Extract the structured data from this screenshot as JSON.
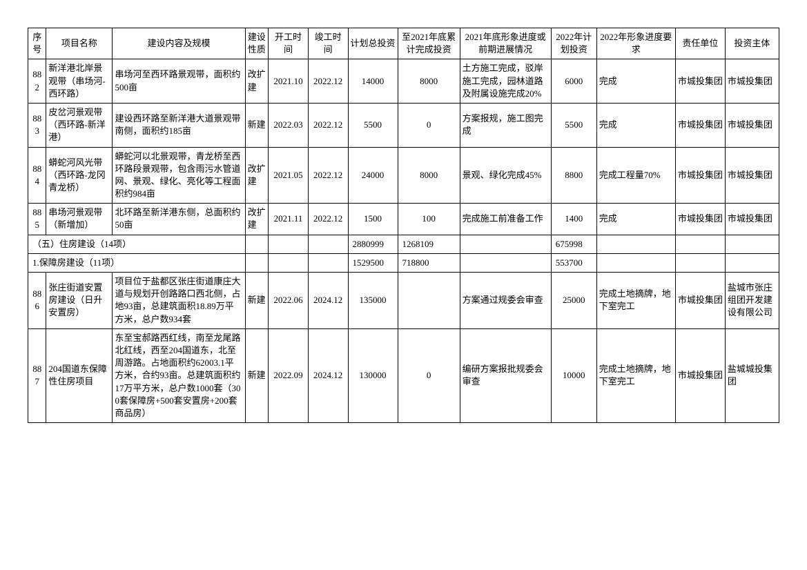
{
  "headers": {
    "seq": "序号",
    "name": "项目名称",
    "content": "建设内容及规模",
    "nature": "建设性质",
    "start": "开工时间",
    "end": "竣工时间",
    "plan_invest": "计划总投资",
    "invest_2021": "至2021年底累计完成投资",
    "status_2021": "2021年底形象进度或前期进展情况",
    "plan_2022": "2022年计划投资",
    "req_2022": "2022年形象进度要求",
    "unit": "责任单位",
    "subject": "投资主体"
  },
  "rows": [
    {
      "seq": "882",
      "name": "新洋港北岸景观带（串场河-西环路）",
      "content": "串场河至西环路景观带，面积约500亩",
      "nature": "改扩建",
      "start": "2021.10",
      "end": "2022.12",
      "plan_invest": "14000",
      "invest_2021": "8000",
      "status_2021": "土方施工完成，驳岸施工完成，园林道路及附属设施完成20%",
      "plan_2022": "6000",
      "req_2022": "完成",
      "unit": "市城投集团",
      "subject": "市城投集团"
    },
    {
      "seq": "883",
      "name": "皮岔河景观带（西环路-新洋港）",
      "content": "建设西环路至新洋港大道景观带南侧，面积约185亩",
      "nature": "新建",
      "start": "2022.03",
      "end": "2022.12",
      "plan_invest": "5500",
      "invest_2021": "0",
      "status_2021": "方案报规，施工图完成",
      "plan_2022": "5500",
      "req_2022": "完成",
      "unit": "市城投集团",
      "subject": "市城投集团"
    },
    {
      "seq": "884",
      "name": "蟒蛇河风光带（西环路-龙冈青龙桥）",
      "content": "蟒蛇河以北景观带，青龙桥至西环路段景观带，包含雨污水管道网、景观、绿化、亮化等工程面积约984亩",
      "nature": "改扩建",
      "start": "2021.05",
      "end": "2022.12",
      "plan_invest": "24000",
      "invest_2021": "8000",
      "status_2021": "景观、绿化完成45%",
      "plan_2022": "8800",
      "req_2022": "完成工程量70%",
      "unit": "市城投集团",
      "subject": "市城投集团"
    },
    {
      "seq": "885",
      "name": "串场河景观带（新增加）",
      "content": "北环路至新洋港东侧，总面积约50亩",
      "nature": "改扩建",
      "start": "2021.11",
      "end": "2022.12",
      "plan_invest": "1500",
      "invest_2021": "100",
      "status_2021": "完成施工前准备工作",
      "plan_2022": "1400",
      "req_2022": "完成",
      "unit": "市城投集团",
      "subject": "市城投集团"
    }
  ],
  "section1": {
    "label": "（五）住房建设（14项）",
    "plan_invest": "2880999",
    "invest_2021": "1268109",
    "plan_2022": "675998"
  },
  "section2": {
    "label": "1.保障房建设（11项）",
    "plan_invest": "1529500",
    "invest_2021": "718800",
    "plan_2022": "553700"
  },
  "rows2": [
    {
      "seq": "886",
      "name": "张庄街道安置房建设（日升安置房）",
      "content": "项目位于盐都区张庄街道康庄大道与规划开创路路口西北侧，占地93亩，总建筑面积18.89万平方米，总户数934套",
      "nature": "新建",
      "start": "2022.06",
      "end": "2024.12",
      "plan_invest": "135000",
      "invest_2021": "",
      "status_2021": "方案通过规委会审查",
      "plan_2022": "25000",
      "req_2022": "完成土地摘牌，地下室完工",
      "unit": "市城投集团",
      "subject": "盐城市张庄组团开发建设有限公司"
    },
    {
      "seq": "887",
      "name": "204国道东保障性住房项目",
      "content": "东至宝郝路西红线，南至龙尾路北红线，西至204国道东，北至周游路。占地面积约62003.1平方米，合约93亩。总建筑面积约17万平方米，总户数1000套（300套保障房+500套安置房+200套商品房）",
      "nature": "新建",
      "start": "2022.09",
      "end": "2024.12",
      "plan_invest": "130000",
      "invest_2021": "0",
      "status_2021": "编研方案报批规委会审查",
      "plan_2022": "10000",
      "req_2022": "完成土地摘牌，地下室完工",
      "unit": "市城投集团",
      "subject": "盐城城投集团"
    }
  ]
}
